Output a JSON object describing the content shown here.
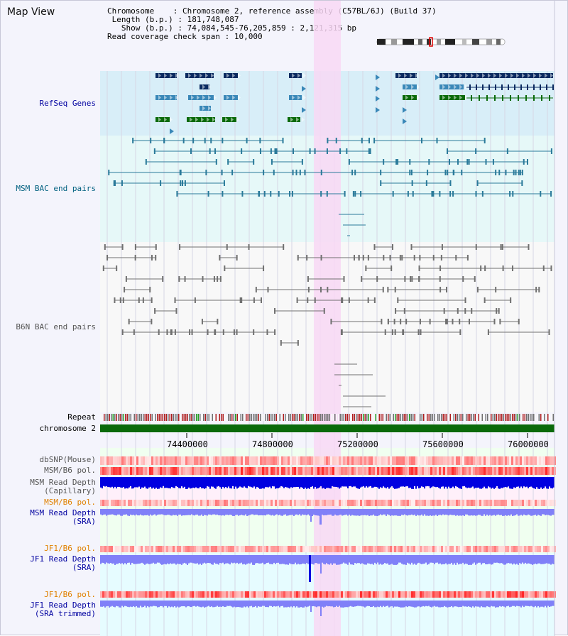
{
  "view_title": "Map View",
  "info": {
    "chromosome_key": "Chromosome",
    "chromosome_val": "Chromosome 2, reference assembly (C57BL/6J) (Build 37)",
    "length_key": "Length (b.p.)",
    "length_val": "181,748,087",
    "show_key": "Show (b.p.)",
    "show_val": "74,084,545-76,205,859 : 2,121,315 bp",
    "span_key": "Read coverage check span",
    "span_val": "10,000"
  },
  "tracks": {
    "refseq": "RefSeq Genes",
    "msm_bac": "MSM BAC end pairs",
    "b6n_bac": "B6N BAC end pairs",
    "repeat": "Repeat",
    "chromosome": "chromosome 2",
    "dbsnp": "dbSNP(Mouse)",
    "msm_b6_pol_1": "MSM/B6 pol.",
    "msm_depth_cap_1": "MSM Read Depth",
    "msm_depth_cap_2": "(Capillary)",
    "msm_b6_pol_2": "MSM/B6 pol.",
    "msm_depth_sra_1": "MSM Read Depth",
    "msm_depth_sra_2": "(SRA)",
    "jf1_b6_pol_1": "JF1/B6 pol.",
    "jf1_depth_sra_1": "JF1 Read Depth",
    "jf1_depth_sra_2": "(SRA)",
    "jf1_b6_pol_2": "JF1/B6 pol.",
    "jf1_depth_trim_1": "JF1 Read Depth",
    "jf1_depth_trim_2": "(SRA trimmed)"
  },
  "axis_ticks": [
    "74400000",
    "74800000",
    "75200000",
    "75600000",
    "76000000"
  ],
  "colors": {
    "refseq_dark": "#0a2a60",
    "refseq_mid": "#3a88b8",
    "refseq_green": "#0a6a0a",
    "msm_bac": "#2a7a9a",
    "b6n_bac": "#707070",
    "chromosome": "#0a6a0a",
    "pol": "#ff4040",
    "depth_dark": "#0000e0",
    "depth_light": "#8080f8",
    "highlight": "#f8d8f4",
    "label_blue": "#0000a0",
    "label_teal": "#006080",
    "label_orange": "#e08000"
  }
}
